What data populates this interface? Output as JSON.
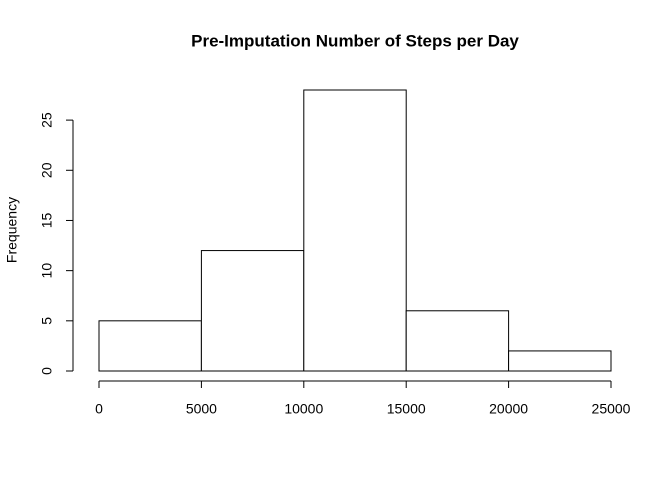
{
  "chart_data": {
    "type": "histogram",
    "title": "Pre-Imputation Number of Steps per Day",
    "ylabel": "Frequency",
    "bins": [
      0,
      5000,
      10000,
      15000,
      20000,
      25000
    ],
    "values": [
      5,
      12,
      28,
      6,
      2
    ],
    "color": "#ffffff",
    "xlim": [
      0,
      25000
    ],
    "xticks": [
      0,
      5000,
      10000,
      15000,
      20000,
      25000
    ],
    "ylim": [
      0,
      28
    ],
    "yticks": [
      0,
      5,
      10,
      15,
      20,
      25
    ]
  }
}
